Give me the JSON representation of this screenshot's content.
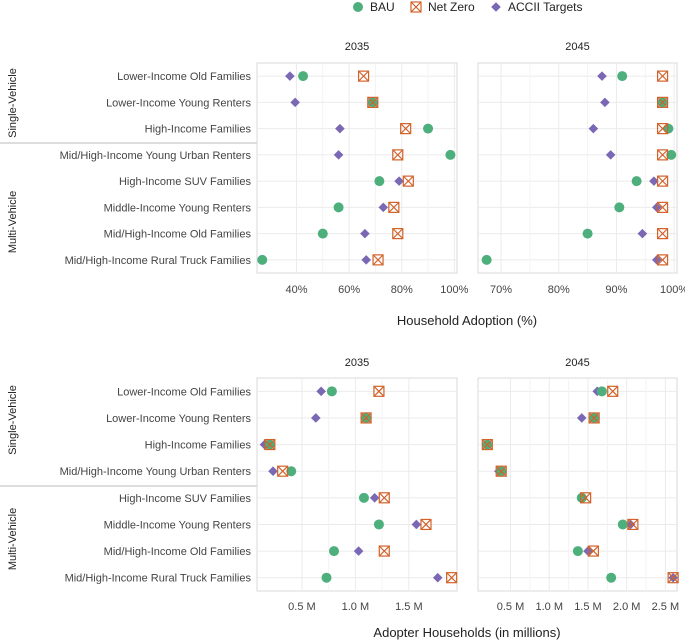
{
  "legend": {
    "items": [
      {
        "name": "BAU",
        "color": "#4daf7c",
        "shape": "circle"
      },
      {
        "name": "Net Zero",
        "color": "#d2622a",
        "shape": "crossed-square"
      },
      {
        "name": "ACCII Targets",
        "color": "#7b68b5",
        "shape": "diamond"
      }
    ]
  },
  "chart_data": [
    {
      "type": "scatter",
      "title": "Household Adoption",
      "xlabel": "Household Adoption (%)",
      "facets": [
        "2035",
        "2045"
      ],
      "groups": [
        {
          "label": "Single-Vehicle",
          "categories": [
            "Lower-Income Old Families",
            "Lower-Income Young Renters",
            "High-Income Families",
            "Mid/High-Income Young Urban Renters"
          ]
        },
        {
          "label": "Multi-Vehicle",
          "categories": [
            "High-Income SUV Families",
            "Middle-Income Young Renters",
            "Mid/High-Income Old Families",
            "Mid/High-Income Rural Truck Families"
          ]
        }
      ],
      "categories": [
        "Lower-Income Old Families",
        "Lower-Income Young Renters",
        "High-Income Families",
        "Mid/High-Income Young Urban Renters",
        "High-Income SUV Families",
        "Middle-Income Young Renters",
        "Mid/High-Income Old Families",
        "Mid/High-Income Rural Truck Families"
      ],
      "panels": [
        {
          "facet": "2035",
          "xlim": [
            25,
            101
          ],
          "ticks": [
            40,
            60,
            80,
            100
          ],
          "tick_labels": [
            "40%",
            "60%",
            "80%",
            "100%"
          ],
          "series": [
            {
              "name": "BAU",
              "values": [
                42.5,
                69,
                90,
                98.5,
                71.5,
                56,
                50,
                27
              ]
            },
            {
              "name": "Net Zero",
              "values": [
                65.5,
                69,
                81.5,
                78.5,
                82.5,
                77,
                78.5,
                71
              ]
            },
            {
              "name": "ACCII Targets",
              "values": [
                37.5,
                39.5,
                56.5,
                56,
                79,
                73,
                66,
                66.5
              ]
            }
          ]
        },
        {
          "facet": "2045",
          "xlim": [
            66,
            100.5
          ],
          "ticks": [
            70,
            80,
            90,
            100
          ],
          "tick_labels": [
            "70%",
            "80%",
            "90%",
            "100%"
          ],
          "series": [
            {
              "name": "BAU",
              "values": [
                91,
                98,
                99,
                99.5,
                93.5,
                90.5,
                85,
                67.5
              ]
            },
            {
              "name": "Net Zero",
              "values": [
                98,
                98,
                98,
                98,
                98,
                98,
                98,
                98
              ]
            },
            {
              "name": "ACCII Targets",
              "values": [
                87.5,
                88,
                86,
                89,
                96.5,
                97,
                94.5,
                97
              ]
            }
          ]
        }
      ]
    },
    {
      "type": "scatter",
      "title": "Adopter Households",
      "xlabel": "Adopter Households (in millions)",
      "facets": [
        "2035",
        "2045"
      ],
      "groups": [
        {
          "label": "Single-Vehicle",
          "categories": [
            "Lower-Income Old Families",
            "Lower-Income Young Renters",
            "High-Income Families",
            "Mid/High-Income Young Urban Renters"
          ]
        },
        {
          "label": "Multi-Vehicle",
          "categories": [
            "High-Income SUV Families",
            "Middle-Income Young Renters",
            "Mid/High-Income Old Families",
            "Mid/High-Income Rural Truck Families"
          ]
        }
      ],
      "categories": [
        "Lower-Income Old Families",
        "Lower-Income Young Renters",
        "High-Income Families",
        "Mid/High-Income Young Urban Renters",
        "High-Income SUV Families",
        "Middle-Income Young Renters",
        "Mid/High-Income Old Families",
        "Mid/High-Income Rural Truck Families"
      ],
      "panels": [
        {
          "facet": "2035",
          "xlim": [
            0.08,
            1.95
          ],
          "ticks": [
            0.5,
            1.0,
            1.5
          ],
          "tick_labels": [
            "0.5 M",
            "1.0 M",
            "1.5 M"
          ],
          "series": [
            {
              "name": "BAU",
              "values": [
                0.78,
                1.1,
                0.2,
                0.4,
                1.08,
                1.22,
                0.8,
                0.73
              ]
            },
            {
              "name": "Net Zero",
              "values": [
                1.22,
                1.1,
                0.2,
                0.32,
                1.27,
                1.66,
                1.27,
                1.9
              ]
            },
            {
              "name": "ACCII Targets",
              "values": [
                0.68,
                0.63,
                0.15,
                0.23,
                1.18,
                1.57,
                1.03,
                1.77
              ]
            }
          ]
        },
        {
          "facet": "2045",
          "xlim": [
            0.08,
            2.65
          ],
          "ticks": [
            0.5,
            1.0,
            1.5,
            2.0,
            2.5
          ],
          "tick_labels": [
            "0.5 M",
            "1.0 M",
            "1.5 M",
            "2.0 M",
            "2.5 M"
          ],
          "series": [
            {
              "name": "BAU",
              "values": [
                1.68,
                1.58,
                0.2,
                0.38,
                1.42,
                1.95,
                1.37,
                1.8
              ]
            },
            {
              "name": "Net Zero",
              "values": [
                1.82,
                1.58,
                0.2,
                0.38,
                1.47,
                2.08,
                1.57,
                2.6
              ]
            },
            {
              "name": "ACCII Targets",
              "values": [
                1.62,
                1.42,
                0.2,
                0.35,
                1.43,
                2.05,
                1.5,
                2.6
              ]
            }
          ]
        }
      ]
    }
  ]
}
